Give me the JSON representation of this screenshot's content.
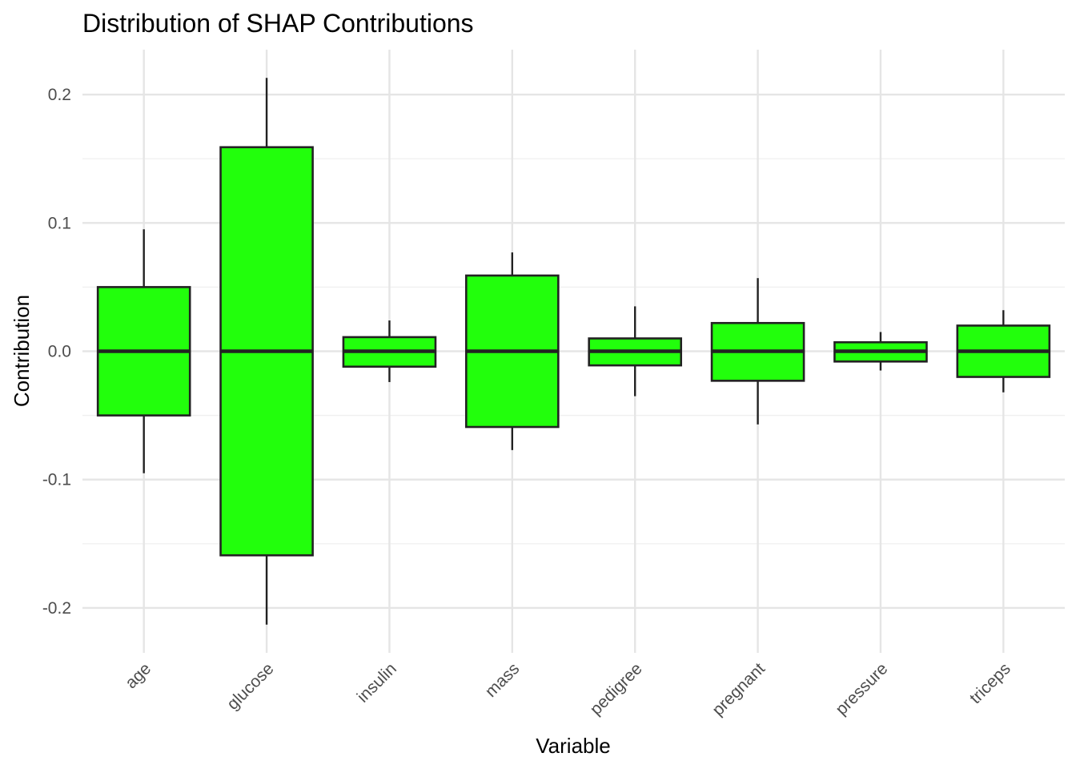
{
  "chart_data": {
    "type": "boxplot",
    "title": "Distribution of SHAP Contributions",
    "xlabel": "Variable",
    "ylabel": "Contribution",
    "ylim": [
      -0.235,
      0.235
    ],
    "yticks": [
      -0.2,
      -0.1,
      0.0,
      0.1,
      0.2
    ],
    "ytick_labels": [
      "-0.2",
      "-0.1",
      "0.0",
      "0.1",
      "0.2"
    ],
    "grid": true,
    "legend": "none",
    "box_fill": "#22ff0c",
    "box_stroke": "#222222",
    "categories": [
      "age",
      "glucose",
      "insulin",
      "mass",
      "pedigree",
      "pregnant",
      "pressure",
      "triceps"
    ],
    "boxes": [
      {
        "label": "age",
        "min": -0.095,
        "q1": -0.05,
        "median": 0.0,
        "q3": 0.05,
        "max": 0.095
      },
      {
        "label": "glucose",
        "min": -0.213,
        "q1": -0.159,
        "median": 0.0,
        "q3": 0.159,
        "max": 0.213
      },
      {
        "label": "insulin",
        "min": -0.024,
        "q1": -0.012,
        "median": 0.0,
        "q3": 0.011,
        "max": 0.024
      },
      {
        "label": "mass",
        "min": -0.077,
        "q1": -0.059,
        "median": 0.0,
        "q3": 0.059,
        "max": 0.077
      },
      {
        "label": "pedigree",
        "min": -0.035,
        "q1": -0.011,
        "median": 0.0,
        "q3": 0.01,
        "max": 0.035
      },
      {
        "label": "pregnant",
        "min": -0.057,
        "q1": -0.023,
        "median": 0.0,
        "q3": 0.022,
        "max": 0.057
      },
      {
        "label": "pressure",
        "min": -0.015,
        "q1": -0.008,
        "median": 0.0,
        "q3": 0.007,
        "max": 0.015
      },
      {
        "label": "triceps",
        "min": -0.032,
        "q1": -0.02,
        "median": 0.0,
        "q3": 0.02,
        "max": 0.032
      }
    ]
  }
}
